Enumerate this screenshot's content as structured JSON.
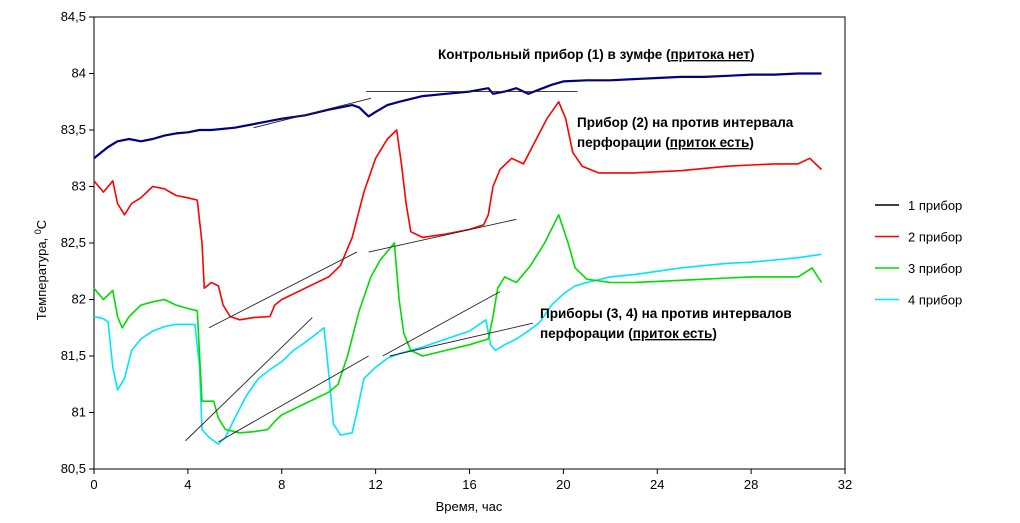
{
  "chart_data": {
    "type": "line",
    "xlabel": "Время, час",
    "ylabel_main": "Температура, ",
    "ylabel_sup": "0",
    "ylabel_unit": "C",
    "xlim": [
      0,
      32
    ],
    "ylim": [
      80.5,
      84.5
    ],
    "x_ticks": [
      "0",
      "4",
      "8",
      "12",
      "16",
      "20",
      "24",
      "28",
      "32"
    ],
    "x_tick_values": [
      0,
      4,
      8,
      12,
      16,
      20,
      24,
      28,
      32
    ],
    "y_ticks": [
      "80,5",
      "81",
      "81,5",
      "82",
      "82,5",
      "83",
      "83,5",
      "84",
      "84,5"
    ],
    "y_tick_values": [
      80.5,
      81,
      81.5,
      82,
      82.5,
      83,
      83.5,
      84,
      84.5
    ],
    "legend": "right",
    "series": [
      {
        "name": "1 прибор",
        "color": "#000080",
        "legend_color": "#000000",
        "points": [
          [
            0,
            83.25
          ],
          [
            0.3,
            83.3
          ],
          [
            0.6,
            83.35
          ],
          [
            1,
            83.4
          ],
          [
            1.5,
            83.42
          ],
          [
            2,
            83.4
          ],
          [
            2.5,
            83.42
          ],
          [
            3,
            83.45
          ],
          [
            3.5,
            83.47
          ],
          [
            4,
            83.48
          ],
          [
            4.5,
            83.5
          ],
          [
            5,
            83.5
          ],
          [
            6,
            83.52
          ],
          [
            7,
            83.56
          ],
          [
            8,
            83.6
          ],
          [
            9,
            83.63
          ],
          [
            10,
            83.68
          ],
          [
            10.5,
            83.7
          ],
          [
            11,
            83.72
          ],
          [
            11.3,
            83.7
          ],
          [
            11.7,
            83.62
          ],
          [
            12,
            83.66
          ],
          [
            12.5,
            83.72
          ],
          [
            13,
            83.75
          ],
          [
            14,
            83.8
          ],
          [
            15,
            83.82
          ],
          [
            16,
            83.84
          ],
          [
            16.8,
            83.87
          ],
          [
            17,
            83.82
          ],
          [
            17.5,
            83.84
          ],
          [
            18,
            83.87
          ],
          [
            18.5,
            83.82
          ],
          [
            19,
            83.86
          ],
          [
            19.5,
            83.9
          ],
          [
            20,
            83.93
          ],
          [
            21,
            83.94
          ],
          [
            22,
            83.94
          ],
          [
            23,
            83.95
          ],
          [
            24,
            83.96
          ],
          [
            25,
            83.97
          ],
          [
            26,
            83.97
          ],
          [
            27,
            83.98
          ],
          [
            28,
            83.99
          ],
          [
            29,
            83.99
          ],
          [
            30,
            84.0
          ],
          [
            31,
            84.0
          ]
        ]
      },
      {
        "name": "2 прибор",
        "color": "#ff0000",
        "legend_color": "#ff0000",
        "points": [
          [
            0,
            83.05
          ],
          [
            0.4,
            82.95
          ],
          [
            0.8,
            83.05
          ],
          [
            1.0,
            82.85
          ],
          [
            1.3,
            82.75
          ],
          [
            1.6,
            82.85
          ],
          [
            2,
            82.9
          ],
          [
            2.5,
            83.0
          ],
          [
            3,
            82.98
          ],
          [
            3.5,
            82.92
          ],
          [
            4,
            82.9
          ],
          [
            4.4,
            82.88
          ],
          [
            4.6,
            82.5
          ],
          [
            4.7,
            82.1
          ],
          [
            5,
            82.15
          ],
          [
            5.3,
            82.12
          ],
          [
            5.5,
            81.95
          ],
          [
            5.8,
            81.85
          ],
          [
            6.2,
            81.82
          ],
          [
            6.8,
            81.84
          ],
          [
            7.5,
            81.85
          ],
          [
            7.7,
            81.95
          ],
          [
            8,
            82.0
          ],
          [
            9,
            82.1
          ],
          [
            10,
            82.2
          ],
          [
            10.5,
            82.3
          ],
          [
            11,
            82.55
          ],
          [
            11.5,
            82.95
          ],
          [
            12,
            83.25
          ],
          [
            12.5,
            83.42
          ],
          [
            12.9,
            83.5
          ],
          [
            13.1,
            83.2
          ],
          [
            13.3,
            82.85
          ],
          [
            13.5,
            82.6
          ],
          [
            14,
            82.55
          ],
          [
            15,
            82.58
          ],
          [
            16,
            82.62
          ],
          [
            16.6,
            82.66
          ],
          [
            16.8,
            82.75
          ],
          [
            17,
            83.0
          ],
          [
            17.3,
            83.15
          ],
          [
            17.8,
            83.25
          ],
          [
            18.3,
            83.2
          ],
          [
            18.8,
            83.4
          ],
          [
            19.3,
            83.6
          ],
          [
            19.8,
            83.75
          ],
          [
            20.1,
            83.6
          ],
          [
            20.4,
            83.3
          ],
          [
            20.8,
            83.18
          ],
          [
            21.5,
            83.12
          ],
          [
            22,
            83.12
          ],
          [
            23,
            83.12
          ],
          [
            24,
            83.13
          ],
          [
            25,
            83.14
          ],
          [
            26,
            83.16
          ],
          [
            27,
            83.18
          ],
          [
            28,
            83.19
          ],
          [
            29,
            83.2
          ],
          [
            30,
            83.2
          ],
          [
            30.5,
            83.25
          ],
          [
            31,
            83.15
          ]
        ]
      },
      {
        "name": "3 прибор",
        "color": "#00dd00",
        "legend_color": "#00dd00",
        "points": [
          [
            0,
            82.1
          ],
          [
            0.4,
            82.0
          ],
          [
            0.8,
            82.08
          ],
          [
            1.0,
            81.85
          ],
          [
            1.2,
            81.75
          ],
          [
            1.5,
            81.85
          ],
          [
            2,
            81.95
          ],
          [
            2.5,
            81.98
          ],
          [
            3,
            82.0
          ],
          [
            3.5,
            81.95
          ],
          [
            4,
            81.92
          ],
          [
            4.4,
            81.9
          ],
          [
            4.5,
            81.5
          ],
          [
            4.6,
            81.1
          ],
          [
            4.8,
            81.1
          ],
          [
            5.1,
            81.1
          ],
          [
            5.3,
            80.95
          ],
          [
            5.6,
            80.85
          ],
          [
            6.2,
            80.82
          ],
          [
            6.8,
            80.83
          ],
          [
            7.4,
            80.85
          ],
          [
            7.7,
            80.92
          ],
          [
            8,
            80.98
          ],
          [
            9,
            81.08
          ],
          [
            10,
            81.18
          ],
          [
            10.4,
            81.25
          ],
          [
            10.8,
            81.5
          ],
          [
            11.3,
            81.9
          ],
          [
            11.8,
            82.2
          ],
          [
            12.2,
            82.35
          ],
          [
            12.6,
            82.45
          ],
          [
            12.8,
            82.5
          ],
          [
            13,
            82.0
          ],
          [
            13.2,
            81.7
          ],
          [
            13.5,
            81.55
          ],
          [
            14,
            81.5
          ],
          [
            15,
            81.55
          ],
          [
            16,
            81.6
          ],
          [
            16.8,
            81.65
          ],
          [
            17,
            81.85
          ],
          [
            17.2,
            82.1
          ],
          [
            17.5,
            82.2
          ],
          [
            18,
            82.15
          ],
          [
            18.6,
            82.3
          ],
          [
            19.2,
            82.5
          ],
          [
            19.8,
            82.75
          ],
          [
            20.2,
            82.5
          ],
          [
            20.5,
            82.28
          ],
          [
            21,
            82.18
          ],
          [
            22,
            82.15
          ],
          [
            23,
            82.15
          ],
          [
            24,
            82.16
          ],
          [
            25,
            82.17
          ],
          [
            26,
            82.18
          ],
          [
            27,
            82.19
          ],
          [
            28,
            82.2
          ],
          [
            29,
            82.2
          ],
          [
            30,
            82.2
          ],
          [
            30.6,
            82.28
          ],
          [
            31,
            82.15
          ]
        ]
      },
      {
        "name": "4 прибор",
        "color": "#00e5ff",
        "legend_color": "#00e5ff",
        "points": [
          [
            0,
            81.85
          ],
          [
            0.4,
            81.83
          ],
          [
            0.6,
            81.8
          ],
          [
            0.8,
            81.4
          ],
          [
            1,
            81.2
          ],
          [
            1.3,
            81.3
          ],
          [
            1.6,
            81.55
          ],
          [
            2,
            81.65
          ],
          [
            2.5,
            81.72
          ],
          [
            3,
            81.76
          ],
          [
            3.5,
            81.78
          ],
          [
            4,
            81.78
          ],
          [
            4.3,
            81.78
          ],
          [
            4.5,
            81.4
          ],
          [
            4.6,
            80.85
          ],
          [
            4.9,
            80.78
          ],
          [
            5.3,
            80.72
          ],
          [
            5.6,
            80.78
          ],
          [
            6,
            80.95
          ],
          [
            6.5,
            81.15
          ],
          [
            7,
            81.3
          ],
          [
            7.5,
            81.38
          ],
          [
            8,
            81.45
          ],
          [
            8.5,
            81.55
          ],
          [
            9,
            81.62
          ],
          [
            9.5,
            81.7
          ],
          [
            9.8,
            81.75
          ],
          [
            10,
            81.35
          ],
          [
            10.2,
            80.9
          ],
          [
            10.5,
            80.8
          ],
          [
            11,
            80.82
          ],
          [
            11.2,
            81.0
          ],
          [
            11.5,
            81.3
          ],
          [
            12,
            81.4
          ],
          [
            12.5,
            81.48
          ],
          [
            13,
            81.52
          ],
          [
            14,
            81.58
          ],
          [
            15,
            81.65
          ],
          [
            16,
            81.72
          ],
          [
            16.7,
            81.82
          ],
          [
            16.9,
            81.6
          ],
          [
            17.1,
            81.55
          ],
          [
            17.5,
            81.6
          ],
          [
            18,
            81.65
          ],
          [
            18.5,
            81.72
          ],
          [
            19,
            81.8
          ],
          [
            19.5,
            81.95
          ],
          [
            20,
            82.05
          ],
          [
            20.5,
            82.12
          ],
          [
            21,
            82.15
          ],
          [
            22,
            82.2
          ],
          [
            23,
            82.22
          ],
          [
            24,
            82.25
          ],
          [
            25,
            82.28
          ],
          [
            26,
            82.3
          ],
          [
            27,
            82.32
          ],
          [
            28,
            82.33
          ],
          [
            29,
            82.35
          ],
          [
            30,
            82.37
          ],
          [
            31,
            82.4
          ]
        ]
      }
    ],
    "trend_lines": [
      [
        [
          6.8,
          83.52
        ],
        [
          11.8,
          83.78
        ]
      ],
      [
        [
          11.6,
          83.84
        ],
        [
          20.6,
          83.84
        ]
      ],
      [
        [
          4.9,
          81.75
        ],
        [
          11.2,
          82.42
        ]
      ],
      [
        [
          11.7,
          82.42
        ],
        [
          18,
          82.71
        ]
      ],
      [
        [
          3.9,
          80.75
        ],
        [
          9.3,
          81.84
        ]
      ],
      [
        [
          5.3,
          80.74
        ],
        [
          11.7,
          81.5
        ]
      ],
      [
        [
          12.3,
          81.5
        ],
        [
          17.3,
          82.07
        ]
      ],
      [
        [
          12.6,
          81.5
        ],
        [
          18.7,
          81.79
        ]
      ]
    ],
    "annotations": [
      {
        "lines": [
          {
            "pre": "Контрольный прибор (1) в зумфе (",
            "u": "притока нет",
            "post": ")"
          }
        ]
      },
      {
        "lines": [
          {
            "pre": "Прибор (2) на против интервала",
            "u": "",
            "post": ""
          },
          {
            "pre": "перфорации (",
            "u": "приток есть",
            "post": ")"
          }
        ]
      },
      {
        "lines": [
          {
            "pre": "Приборы (3, 4) на против интервалов",
            "u": "",
            "post": ""
          },
          {
            "pre": "перфорации (",
            "u": "приток есть",
            "post": ")"
          }
        ]
      }
    ]
  }
}
